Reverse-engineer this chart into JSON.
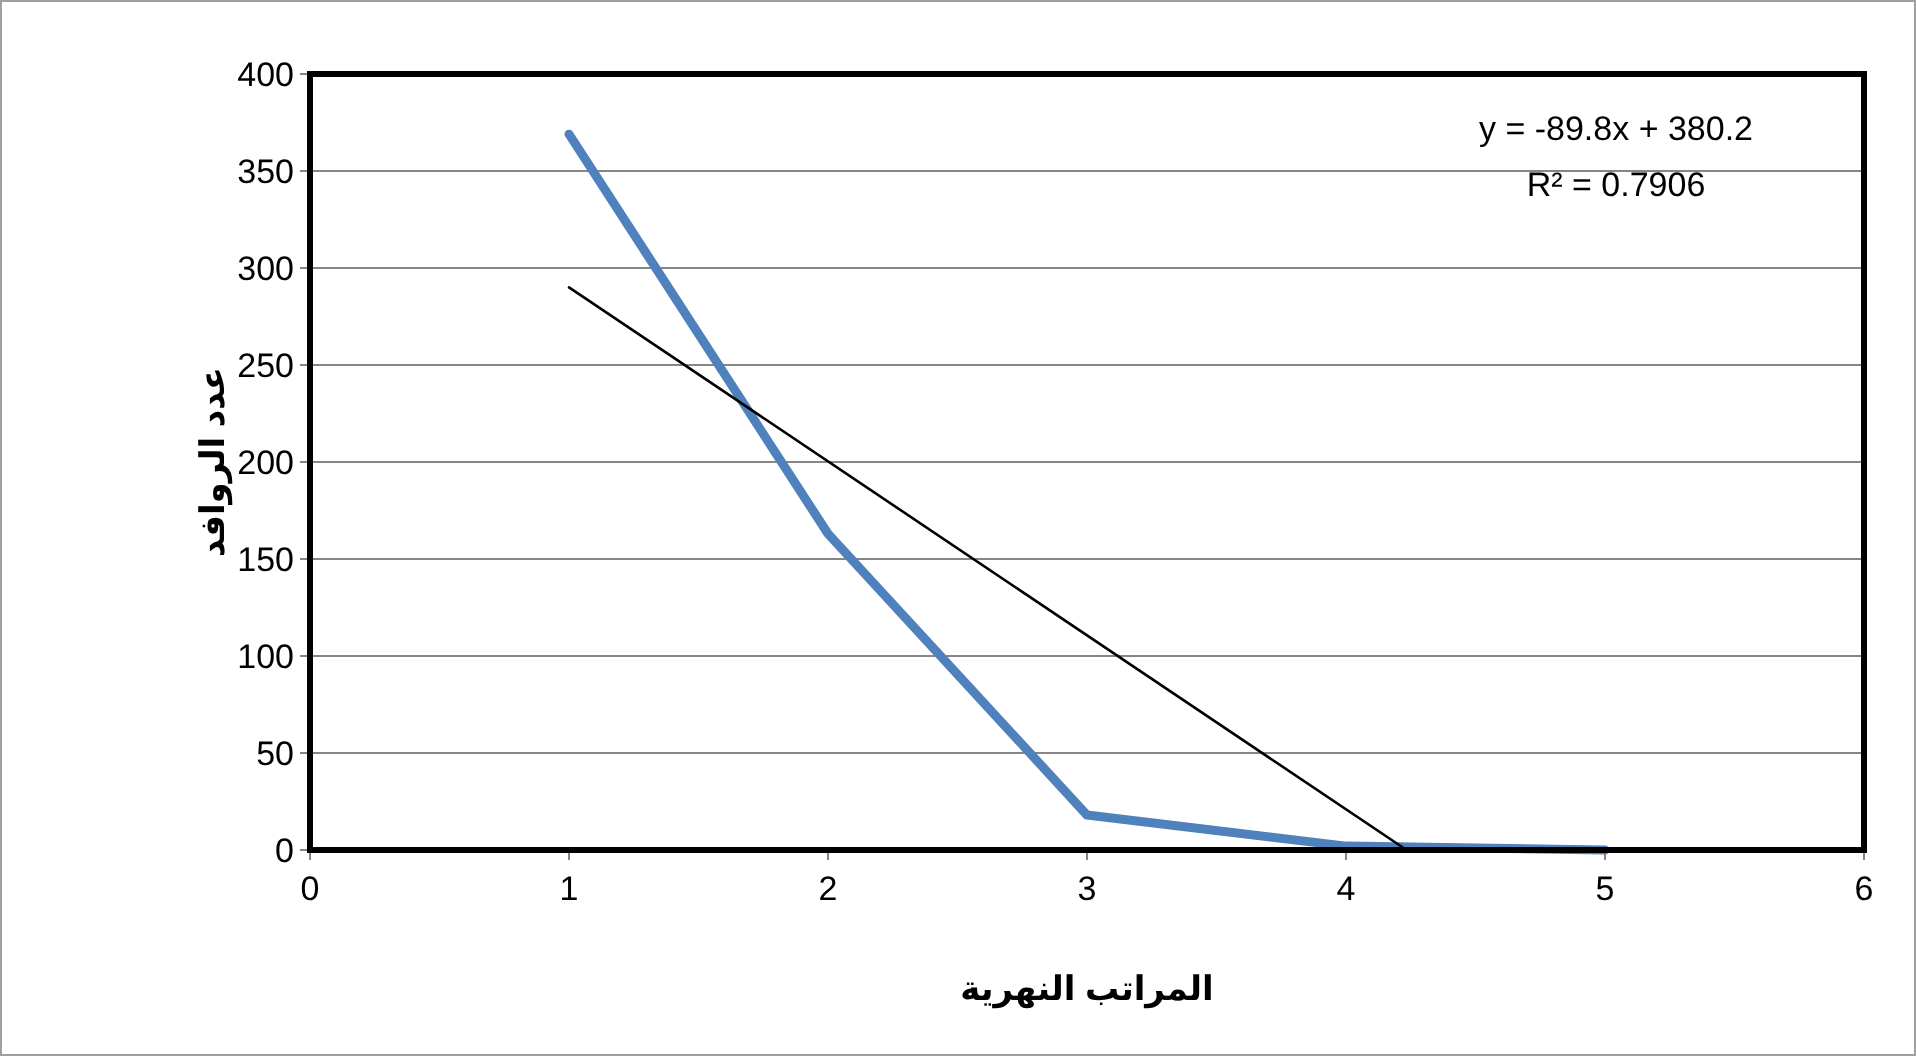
{
  "chart_data": {
    "type": "line",
    "xlabel": "المراتب النهرية",
    "ylabel": "عدد الروافد",
    "x": [
      1,
      2,
      3,
      4,
      5
    ],
    "series": [
      {
        "color": "#4f81bd",
        "values": [
          369,
          163,
          18,
          2,
          0
        ]
      },
      {
        "color": "#000000",
        "x": [
          1,
          4.234
        ],
        "values": [
          290,
          0
        ]
      }
    ],
    "annotations": [
      "y = -89.8x + 380.2",
      "R² = 0.7906"
    ],
    "xlim": [
      0,
      6
    ],
    "xticks": [
      0,
      1,
      2,
      3,
      4,
      5,
      6
    ],
    "ylim": [
      0,
      400
    ],
    "yticks": [
      0,
      50,
      100,
      150,
      200,
      250,
      300,
      350,
      400
    ],
    "grid": "y",
    "line_style": "solid"
  }
}
